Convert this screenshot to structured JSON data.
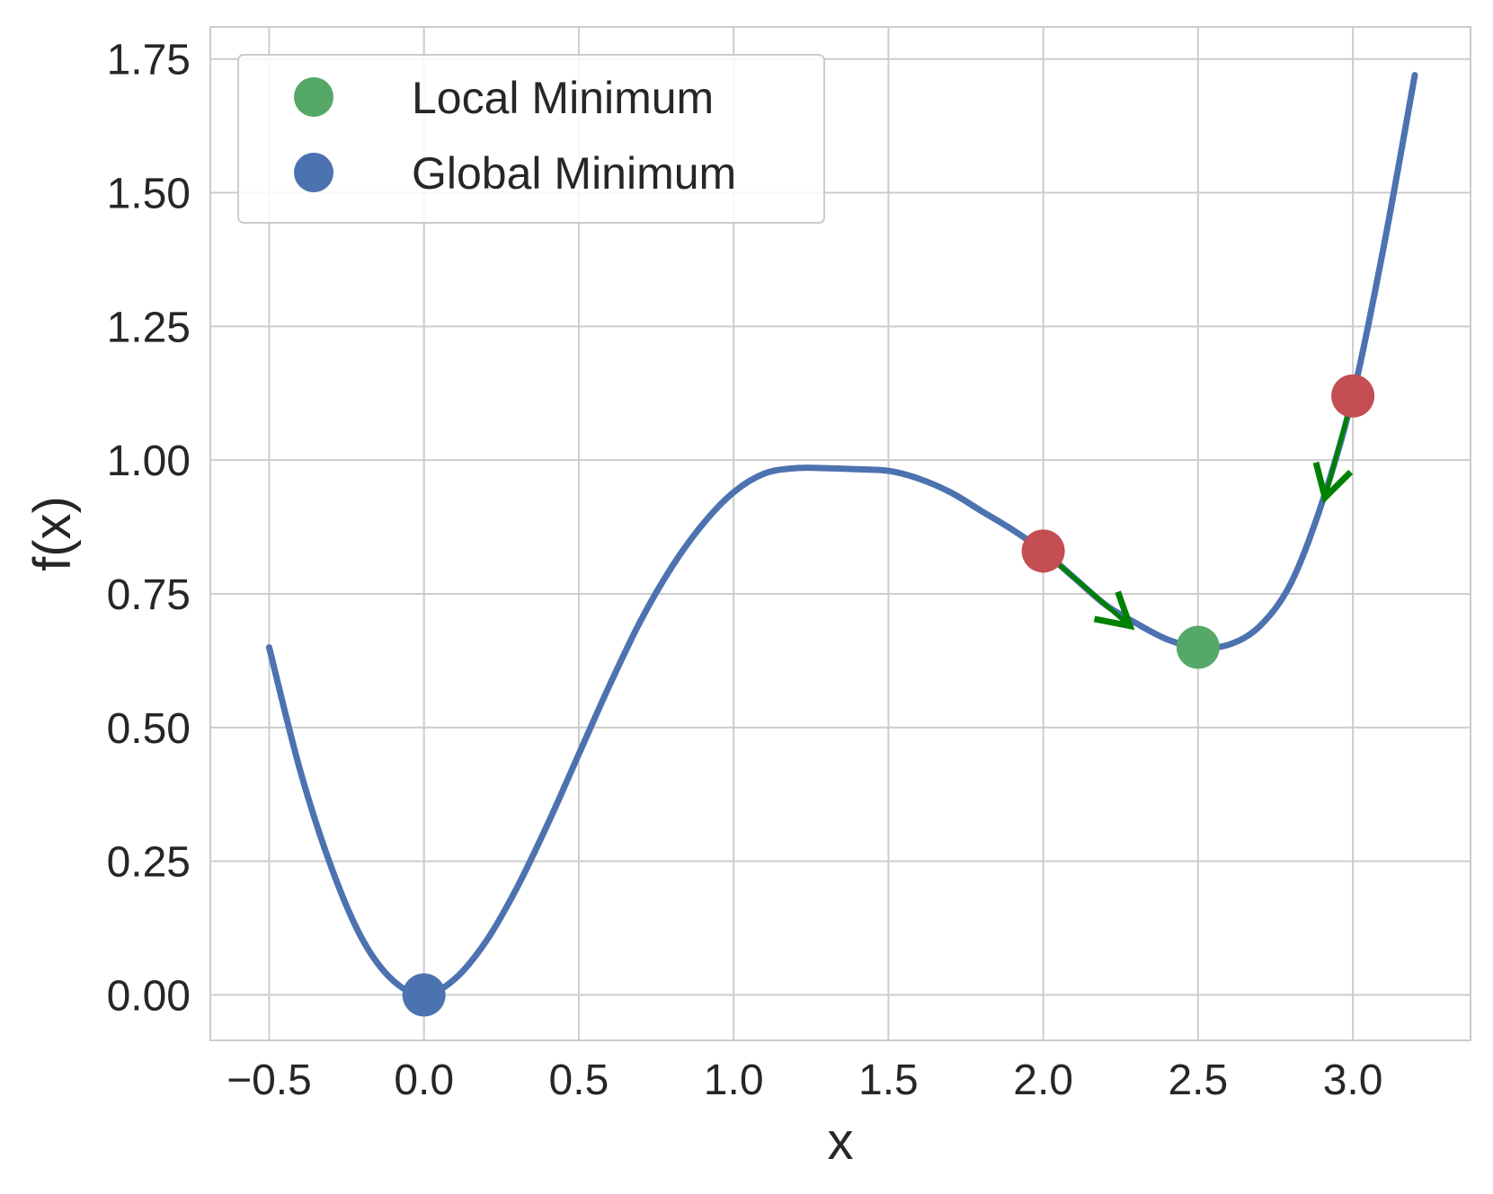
{
  "chart_data": {
    "type": "line",
    "xlabel": "x",
    "ylabel": "f(x)",
    "xlim": [
      -0.69,
      3.38
    ],
    "ylim": [
      -0.085,
      1.81
    ],
    "xticks": [
      -0.5,
      0.0,
      0.5,
      1.0,
      1.5,
      2.0,
      2.5,
      3.0
    ],
    "xtick_labels": [
      "−0.5",
      "0.0",
      "0.5",
      "1.0",
      "1.5",
      "2.0",
      "2.5",
      "3.0"
    ],
    "yticks": [
      0.0,
      0.25,
      0.5,
      0.75,
      1.0,
      1.25,
      1.5,
      1.75
    ],
    "ytick_labels": [
      "0.00",
      "0.25",
      "0.50",
      "0.75",
      "1.00",
      "1.25",
      "1.50",
      "1.75"
    ],
    "grid": true,
    "legend": {
      "placement": "upper-left"
    },
    "series": [
      {
        "type": "line",
        "color": "#4c72b0",
        "x": [
          -0.5,
          -0.4,
          -0.3,
          -0.2,
          -0.1,
          0.0,
          0.1,
          0.2,
          0.3,
          0.4,
          0.5,
          0.6,
          0.7,
          0.8,
          0.9,
          1.0,
          1.1,
          1.2,
          1.3,
          1.4,
          1.5,
          1.6,
          1.7,
          1.8,
          1.9,
          2.0,
          2.1,
          2.2,
          2.3,
          2.4,
          2.5,
          2.6,
          2.7,
          2.8,
          2.9,
          3.0,
          3.1,
          3.2
        ],
        "y": [
          0.65,
          0.42,
          0.24,
          0.105,
          0.027,
          0.0,
          0.03,
          0.1,
          0.2,
          0.32,
          0.45,
          0.58,
          0.7,
          0.8,
          0.88,
          0.94,
          0.975,
          0.985,
          0.985,
          0.983,
          0.98,
          0.965,
          0.94,
          0.905,
          0.87,
          0.83,
          0.78,
          0.73,
          0.695,
          0.665,
          0.65,
          0.655,
          0.69,
          0.77,
          0.92,
          1.12,
          1.4,
          1.72
        ]
      },
      {
        "type": "scatter",
        "name": "Local Minimum",
        "color": "#55a868",
        "x": [
          2.5
        ],
        "y": [
          0.65
        ]
      },
      {
        "type": "scatter",
        "name": "Global Minimum",
        "color": "#4c72b0",
        "x": [
          0.0
        ],
        "y": [
          0.0
        ]
      },
      {
        "type": "scatter",
        "color": "#c44e52",
        "x": [
          2.0,
          3.0
        ],
        "y": [
          0.83,
          1.12
        ]
      }
    ],
    "arrows": [
      {
        "color": "#008000",
        "from": [
          2.0,
          0.83
        ],
        "to": [
          2.28,
          0.69
        ]
      },
      {
        "color": "#008000",
        "from": [
          3.0,
          1.12
        ],
        "to": [
          2.91,
          0.93
        ]
      }
    ]
  }
}
